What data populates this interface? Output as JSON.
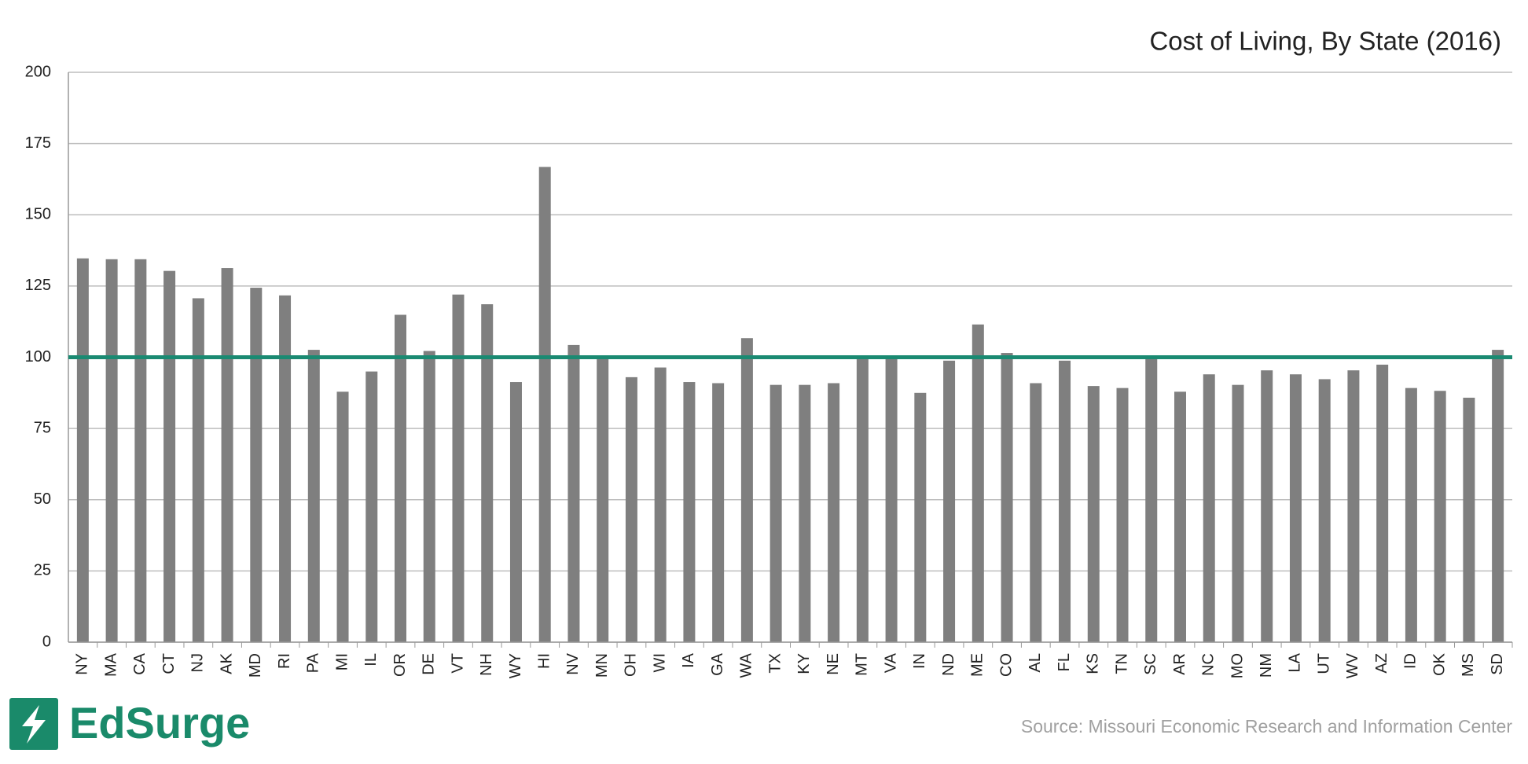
{
  "chart_data": {
    "type": "bar",
    "title": "Cost of Living, By State (2016)",
    "categories": [
      "NY",
      "MA",
      "CA",
      "CT",
      "NJ",
      "AK",
      "MD",
      "RI",
      "PA",
      "MI",
      "IL",
      "OR",
      "DE",
      "VT",
      "NH",
      "WY",
      "HI",
      "NV",
      "MN",
      "OH",
      "WI",
      "IA",
      "GA",
      "WA",
      "TX",
      "KY",
      "NE",
      "MT",
      "VA",
      "IN",
      "ND",
      "ME",
      "CO",
      "AL",
      "FL",
      "KS",
      "TN",
      "SC",
      "AR",
      "NC",
      "MO",
      "NM",
      "LA",
      "UT",
      "WV",
      "AZ",
      "ID",
      "OK",
      "MS",
      "SD"
    ],
    "values": [
      134.7,
      134.4,
      134.4,
      130.3,
      120.7,
      131.3,
      124.4,
      121.7,
      102.6,
      87.9,
      95,
      114.9,
      102.2,
      122,
      118.6,
      91.3,
      166.8,
      104.3,
      100.5,
      93,
      96.4,
      91.3,
      90.9,
      106.7,
      90.3,
      90.3,
      90.9,
      99.8,
      100.2,
      87.5,
      98.8,
      111.5,
      101.5,
      90.9,
      98.8,
      89.9,
      89.2,
      99.8,
      87.9,
      94,
      90.3,
      95.4,
      94,
      92.3,
      95.4,
      97.4,
      89.2,
      88.2,
      85.8,
      102.6
    ],
    "color": "#7f7f7f",
    "ylim": [
      0,
      200
    ],
    "yticks": [
      0,
      25,
      50,
      75,
      100,
      125,
      150,
      175,
      200
    ],
    "grid": true,
    "reference_line": {
      "value": 100,
      "color": "#1a8a72"
    },
    "brand": "EdSurge",
    "source": "Source: Missouri Economic Research and Information Center"
  }
}
